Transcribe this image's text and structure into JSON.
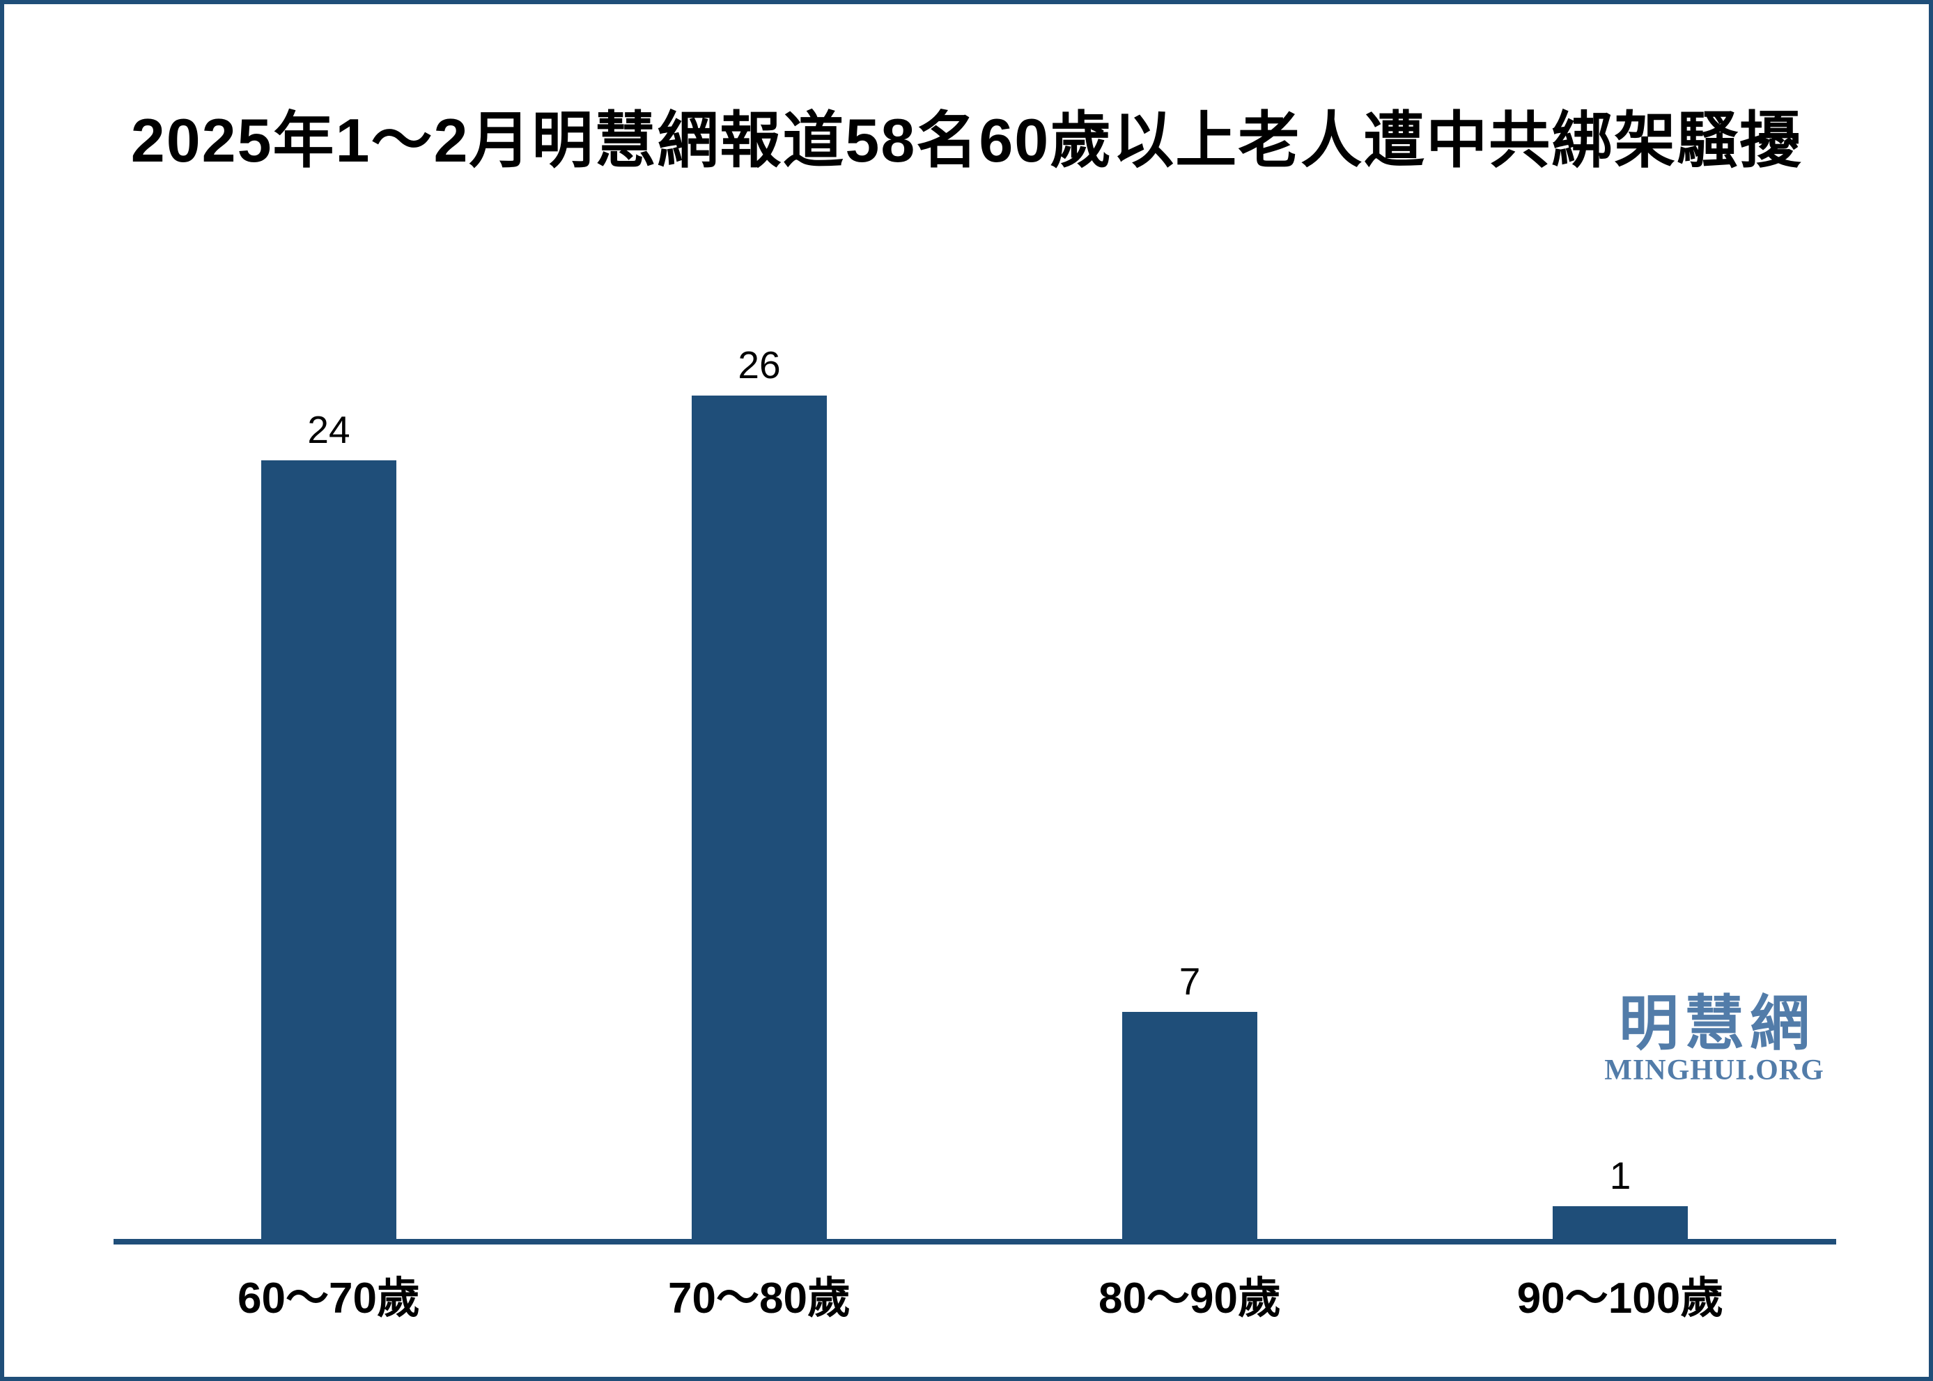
{
  "frame": {
    "background": "#ffffff",
    "border_color": "#1f4e79"
  },
  "title": {
    "text": "2025年1～2月明慧網報道58名60歲以上老人遭中共綁架騷擾",
    "color": "#000000"
  },
  "logo": {
    "cjk": "明慧網",
    "latin": "MINGHUI.ORG",
    "color": "#527ca9"
  },
  "chart_data": {
    "type": "bar",
    "title": "2025年1～2月明慧網報道58名60歲以上老人遭中共綁架騷擾",
    "categories": [
      "60～70歲",
      "70～80歲",
      "80～90歲",
      "90～100歲"
    ],
    "values": [
      24,
      26,
      7,
      1
    ],
    "value_labels": [
      "24",
      "26",
      "7",
      "1"
    ],
    "bar_color": "#1f4e79",
    "axis_color": "#1f4e79",
    "label_color": "#000000",
    "xlabel": "",
    "ylabel": "",
    "ylim": [
      0,
      26
    ],
    "grid": false,
    "legend": "none",
    "y_axis_shown": false,
    "value_label_position": "above-bars"
  }
}
